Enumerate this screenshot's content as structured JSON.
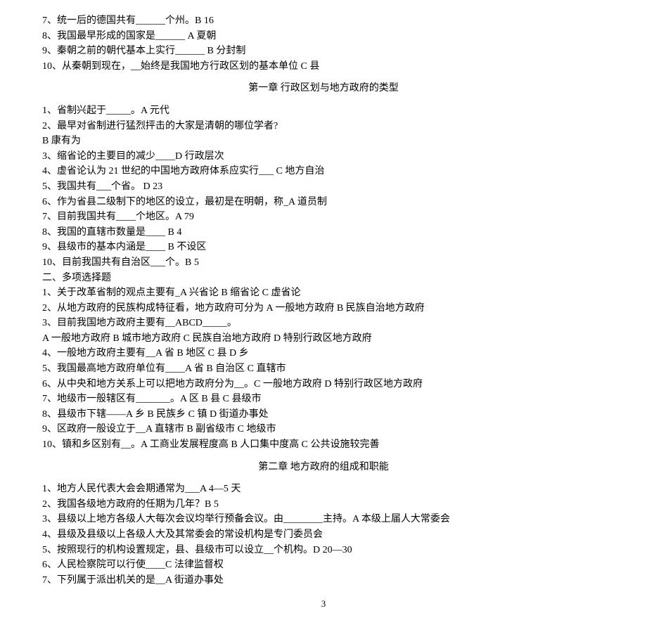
{
  "section1_lines": [
    "7、统一后的德国共有______个州。B  16",
    "8、我国最早形成的国家是______ A 夏朝",
    "9、秦朝之前的朝代基本上实行______ B  分封制",
    "10、从秦朝到现在，__始终是我国地方行政区划的基本单位 C  县"
  ],
  "chapter1_title": "第一章 行政区划与地方政府的类型",
  "chapter1_lines": [
    "1、省制兴起于_____。A 元代",
    "2、最早对省制进行猛烈抨击的大家是清朝的哪位学者?",
    "B  康有为",
    "3、缩省论的主要目的减少____D 行政层次",
    "4、虚省论认为 21 世纪的中国地方政府体系应实行___ C  地方自治",
    "5、我国共有___个省。    D 23",
    "6、作为省县二级制下的地区的设立，最初是在明朝，称_A 道员制",
    "7、目前我国共有____个地区。A 79",
    "8、我国的直辖市数量是____ B  4",
    "9、县级市的基本内涵是____ B  不设区",
    "10、目前我国共有自治区___个。B  5",
    "二、多项选择题",
    "1、关于改革省制的观点主要有_A 兴省论 B 缩省论 C  虚省论",
    "2、从地方政府的民族构成特征看，地方政府可分为 A 一般地方政府 B 民族自治地方政府",
    "3、目前我国地方政府主要有__ABCD_____。",
    "A 一般地方政府 B 城市地方政府 C 民族自治地方政府  D 特别行政区地方政府",
    "4、一般地方政府主要有__A 省 B 地区 C 县 D 乡",
    "5、我国最高地方政府单位有____A 省 B 自治区 C 直辖市",
    "6、从中央和地方关系上可以把地方政府分为__。C 一般地方政府 D 特别行政区地方政府",
    "7、地级市一般辖区有_______。A 区 B 县 C 县级市",
    "8、县级市下辖——A 乡 B 民族乡 C 镇 D 街道办事处",
    "9、区政府一般设立于__A 直辖市 B 副省级市 C  地级市",
    "10、镇和乡区别有__。A 工商业发展程度高 B  人口集中度高 C 公共设施较完善"
  ],
  "chapter2_title": "第二章  地方政府的组成和职能",
  "chapter2_lines": [
    "1、地方人民代表大会会期通常为___A  4—5 天",
    "2、我国各级地方政府的任期为几年？B  5",
    "3、县级以上地方各级人大每次会议均举行预备会议。由________主持。A 本级上届人大常委会",
    "4、县级及县级以上各级人大及其常委会的常设机构是专门委员会",
    "5、按照现行的机构设置规定，县、县级市可以设立__个机构。D 20—30",
    "6、人民检察院可以行使____C 法律监督权",
    "7、下列属于派出机关的是__A 街道办事处"
  ],
  "page_number": "3"
}
